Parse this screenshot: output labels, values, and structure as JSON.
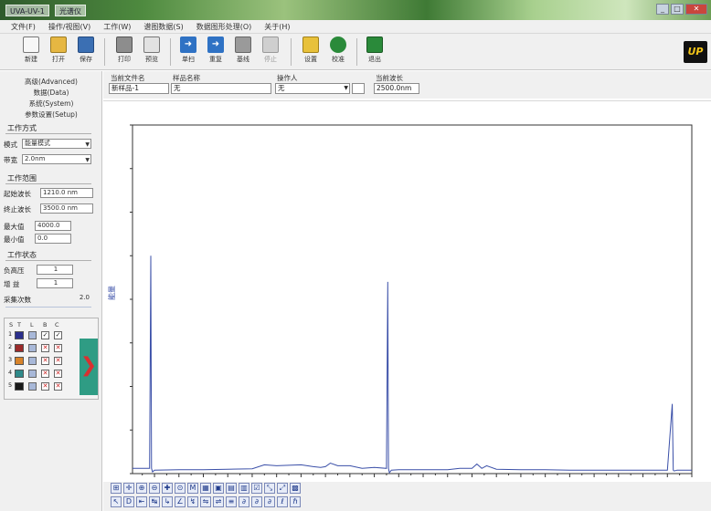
{
  "titlebar": {
    "tabs": [
      "UVA-UV-1",
      "光谱仪"
    ],
    "window_buttons": [
      "minimize",
      "maximize",
      "close"
    ]
  },
  "menu": [
    "文件(F)",
    "操作/视图(V)",
    "工作(W)",
    "谱图数据(S)",
    "数据图形处理(O)",
    "关于(H)"
  ],
  "toolbar": {
    "buttons": [
      {
        "label": "新建",
        "icon": "new-file-icon",
        "color": "#f4f4f4"
      },
      {
        "label": "打开",
        "icon": "open-folder-icon",
        "color": "#e6b742"
      },
      {
        "label": "保存",
        "icon": "save-icon",
        "color": "#3b6fb3"
      },
      {
        "label": "打印",
        "icon": "print-icon",
        "color": "#8d8d8d"
      },
      {
        "label": "预览",
        "icon": "preview-icon",
        "color": "#dcdcdc"
      },
      {
        "label": "单扫",
        "icon": "single-scan-icon",
        "color": "#2f72c4"
      },
      {
        "label": "重复",
        "icon": "repeat-icon",
        "color": "#2f72c4"
      },
      {
        "label": "基线",
        "icon": "baseline-icon",
        "color": "#9a9a9a"
      },
      {
        "label": "停止",
        "icon": "stop-icon",
        "color": "#bcbcbc"
      },
      {
        "label": "设置",
        "icon": "settings-icon",
        "color": "#e8c13a"
      },
      {
        "label": "校准",
        "icon": "calibrate-icon",
        "color": "#2a8a3a"
      },
      {
        "label": "退出",
        "icon": "exit-icon",
        "color": "#2a8a3a"
      }
    ],
    "logo": "UP"
  },
  "left_panel": {
    "links": [
      "高级(Advanced)",
      "数据(Data)",
      "系统(System)",
      "参数设置(Setup)"
    ],
    "work_mode": {
      "title": "工作方式",
      "mode_label": "模式",
      "mode_value": "能量模式",
      "bandwidth_label": "带宽",
      "bandwidth_value": "2.0nm"
    },
    "work_range": {
      "title": "工作范围",
      "start_label": "起始波长",
      "start_value": "1210.0 nm",
      "end_label": "终止波长",
      "end_value": "3500.0 nm",
      "max_label": "最大值",
      "max_value": "4000.0",
      "min_label": "最小值",
      "min_value": "0.0"
    },
    "work_status": {
      "title": "工作状态",
      "voltage_label": "负高压",
      "voltage_value": "1",
      "gain_label": "增 益",
      "gain_value": "1",
      "count_label": "采集次数",
      "count_value": "2.0"
    },
    "legend": {
      "headers": [
        "S",
        "T",
        "L",
        "B",
        "C"
      ],
      "rows": [
        {
          "num": "1",
          "color": "#2b2f8c",
          "t": "blue",
          "l": "check",
          "b": "check"
        },
        {
          "num": "2",
          "color": "#9b2a2a",
          "t": "blue",
          "l": "x",
          "b": "x"
        },
        {
          "num": "3",
          "color": "#d8832a",
          "t": "blue",
          "l": "x",
          "b": "x"
        },
        {
          "num": "4",
          "color": "#2f8a8a",
          "t": "blue",
          "l": "x",
          "b": "x"
        },
        {
          "num": "5",
          "color": "#1a1a1a",
          "t": "blue",
          "l": "x",
          "b": "x"
        }
      ]
    }
  },
  "info_bar": {
    "current_file_label": "当前文件名",
    "current_file_value": "新样品-1",
    "sample_label": "样品名称",
    "sample_value": "无",
    "operator_label": "操作人",
    "operator_value": "无",
    "wavelength_label": "当前波长",
    "wavelength_value": "2500.0nm"
  },
  "chart_data": {
    "type": "line",
    "xlabel": "",
    "ylabel": "能量",
    "xlim": [
      1210,
      3500
    ],
    "ylim": [
      0,
      4000
    ],
    "grid": false,
    "color": "#3a4fa8",
    "x": [
      1210,
      1280,
      1285,
      1288,
      1292,
      1300,
      1400,
      1500,
      1600,
      1700,
      1750,
      1800,
      1900,
      1950,
      1980,
      2000,
      2020,
      2050,
      2100,
      2150,
      2200,
      2250,
      2255,
      2258,
      2262,
      2270,
      2300,
      2400,
      2500,
      2550,
      2600,
      2620,
      2640,
      2660,
      2700,
      2800,
      2900,
      3000,
      3100,
      3200,
      3300,
      3400,
      3420,
      3424,
      3428,
      3440,
      3500
    ],
    "y": [
      60,
      60,
      2500,
      60,
      20,
      40,
      45,
      45,
      50,
      55,
      100,
      90,
      100,
      80,
      70,
      80,
      120,
      90,
      90,
      60,
      70,
      60,
      2200,
      60,
      10,
      40,
      45,
      45,
      45,
      60,
      60,
      110,
      60,
      90,
      50,
      45,
      45,
      40,
      40,
      40,
      40,
      40,
      800,
      40,
      30,
      40,
      40
    ]
  },
  "bottom_toolbar": {
    "row1": [
      "⊞",
      "✛",
      "⊕",
      "⊖",
      "✚",
      "⊙",
      "M",
      "▦",
      "▣",
      "▤",
      "▥",
      "☑",
      "⤡",
      "⤢",
      "▩"
    ],
    "row2": [
      "↖",
      "D",
      "⇤",
      "↹",
      "↳",
      "∠",
      "↯",
      "⇋",
      "⇌",
      "≡",
      "∂",
      "∂",
      "∂",
      "ℓ",
      "ℏ"
    ]
  }
}
